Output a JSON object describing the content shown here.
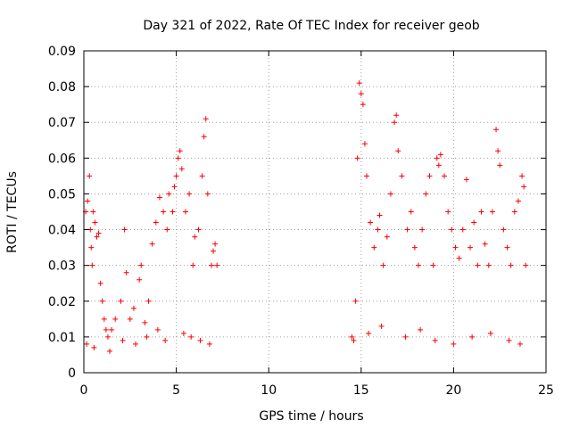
{
  "chart_data": {
    "type": "scatter",
    "title": "Day 321 of 2022, Rate Of TEC Index for receiver geob",
    "xlabel": "GPS time / hours",
    "ylabel": "ROTI / TECUs",
    "xlim": [
      0,
      25
    ],
    "ylim": [
      0,
      0.09
    ],
    "xticks": [
      "0",
      "5",
      "10",
      "15",
      "20",
      "25"
    ],
    "yticks": [
      "0",
      "0.01",
      "0.02",
      "0.03",
      "0.04",
      "0.05",
      "0.06",
      "0.07",
      "0.08",
      "0.09"
    ],
    "grid": true,
    "legend": "none",
    "marker": "+",
    "color": "#ff0000",
    "series": [
      {
        "x": [
          0.1,
          0.2,
          0.3,
          0.35,
          0.4,
          0.45,
          0.5,
          0.6,
          0.7,
          0.8,
          0.9,
          1.0,
          1.1,
          1.2,
          1.3,
          1.5,
          1.7,
          2.0,
          2.2,
          2.3,
          2.5,
          2.7,
          3.0,
          3.1,
          3.3,
          3.5,
          3.7,
          3.9,
          4.1,
          4.3,
          4.5,
          4.6,
          4.8,
          4.9,
          5.0,
          5.1,
          5.2,
          5.3,
          5.5,
          5.7,
          5.9,
          6.0,
          6.2,
          6.4,
          6.5,
          6.6,
          6.7,
          6.9,
          7.0,
          7.1,
          7.2,
          0.15,
          0.55,
          1.4,
          2.1,
          2.8,
          3.4,
          4.0,
          4.4,
          5.4,
          5.8,
          6.3,
          6.8,
          14.5,
          14.7,
          14.8,
          14.9,
          15.0,
          15.1,
          15.2,
          15.3,
          15.5,
          15.7,
          15.9,
          16.0,
          16.2,
          16.4,
          16.6,
          16.8,
          16.9,
          17.0,
          17.2,
          17.5,
          17.7,
          17.9,
          18.1,
          18.3,
          18.5,
          18.7,
          18.9,
          19.1,
          19.2,
          19.3,
          19.5,
          19.7,
          19.9,
          20.1,
          20.3,
          20.5,
          20.7,
          20.9,
          21.1,
          21.3,
          21.5,
          21.7,
          21.9,
          22.1,
          22.3,
          22.4,
          22.5,
          22.7,
          22.9,
          23.1,
          23.3,
          23.5,
          23.7,
          23.8,
          23.9,
          14.6,
          15.4,
          16.1,
          17.4,
          18.2,
          19.0,
          20.0,
          21.0,
          22.0,
          23.0,
          23.6
        ],
        "y": [
          0.045,
          0.048,
          0.055,
          0.04,
          0.035,
          0.03,
          0.045,
          0.042,
          0.038,
          0.039,
          0.025,
          0.02,
          0.015,
          0.012,
          0.01,
          0.012,
          0.015,
          0.02,
          0.04,
          0.028,
          0.015,
          0.018,
          0.026,
          0.03,
          0.014,
          0.02,
          0.036,
          0.042,
          0.049,
          0.045,
          0.04,
          0.05,
          0.045,
          0.052,
          0.055,
          0.06,
          0.062,
          0.057,
          0.045,
          0.05,
          0.03,
          0.038,
          0.04,
          0.055,
          0.066,
          0.071,
          0.05,
          0.03,
          0.034,
          0.036,
          0.03,
          0.008,
          0.007,
          0.006,
          0.009,
          0.008,
          0.01,
          0.012,
          0.009,
          0.011,
          0.01,
          0.009,
          0.008,
          0.01,
          0.02,
          0.06,
          0.081,
          0.078,
          0.075,
          0.064,
          0.055,
          0.042,
          0.035,
          0.04,
          0.044,
          0.03,
          0.038,
          0.05,
          0.07,
          0.072,
          0.062,
          0.055,
          0.04,
          0.045,
          0.035,
          0.03,
          0.04,
          0.05,
          0.055,
          0.03,
          0.06,
          0.058,
          0.061,
          0.055,
          0.045,
          0.04,
          0.035,
          0.032,
          0.04,
          0.054,
          0.035,
          0.042,
          0.03,
          0.045,
          0.036,
          0.03,
          0.045,
          0.068,
          0.062,
          0.058,
          0.04,
          0.035,
          0.03,
          0.045,
          0.048,
          0.055,
          0.052,
          0.03,
          0.009,
          0.011,
          0.013,
          0.01,
          0.012,
          0.009,
          0.008,
          0.01,
          0.011,
          0.009,
          0.008
        ]
      }
    ]
  }
}
